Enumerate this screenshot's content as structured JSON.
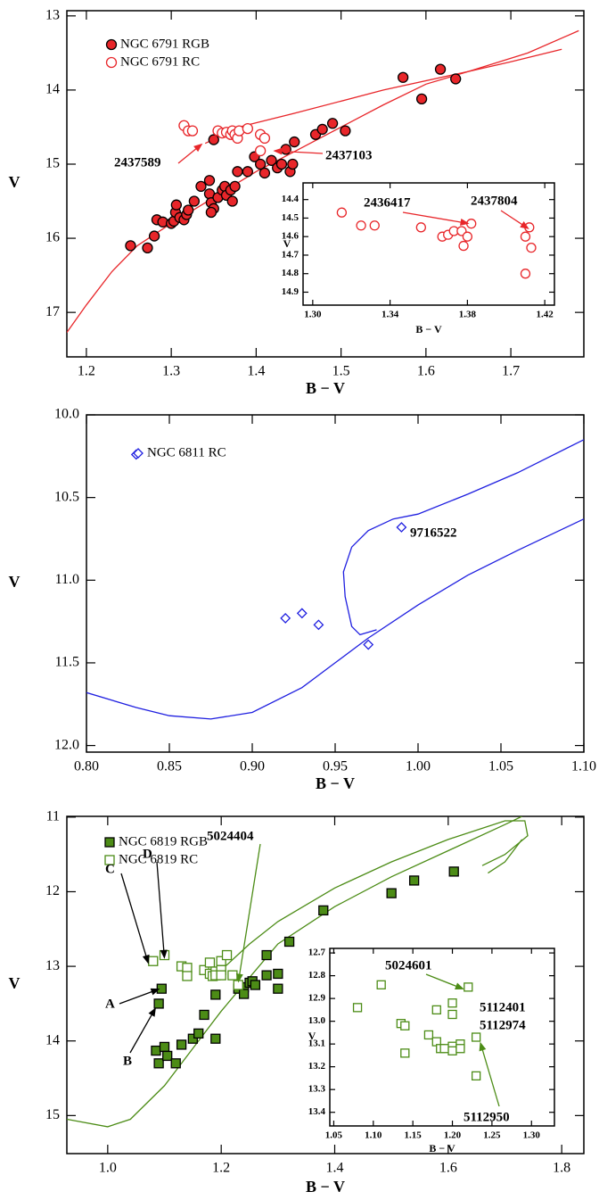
{
  "chart_data": [
    {
      "type": "scatter",
      "xlabel": "B − V",
      "ylabel": "V",
      "y_inverted": true,
      "color": "#e8262a",
      "xlim": [
        1.177,
        1.786
      ],
      "ylim": [
        12.93,
        17.6
      ],
      "xticks": [
        1.2,
        1.3,
        1.4,
        1.5,
        1.6,
        1.7
      ],
      "yticks": [
        13,
        14,
        15,
        16,
        17
      ],
      "series": [
        {
          "name": "NGC 6791 RGB",
          "color": "#e8262a",
          "marker": "filled-circle",
          "x": [
            1.252,
            1.272,
            1.28,
            1.283,
            1.29,
            1.3,
            1.303,
            1.305,
            1.306,
            1.31,
            1.315,
            1.318,
            1.32,
            1.327,
            1.335,
            1.345,
            1.345,
            1.347,
            1.35,
            1.347,
            1.35,
            1.355,
            1.36,
            1.363,
            1.365,
            1.37,
            1.372,
            1.375,
            1.378,
            1.39,
            1.398,
            1.405,
            1.41,
            1.418,
            1.425,
            1.43,
            1.435,
            1.44,
            1.443,
            1.445,
            1.47,
            1.478,
            1.49,
            1.505,
            1.573,
            1.595,
            1.617,
            1.635
          ],
          "y": [
            16.1,
            16.13,
            15.97,
            15.75,
            15.78,
            15.8,
            15.77,
            15.65,
            15.55,
            15.72,
            15.75,
            15.68,
            15.62,
            15.5,
            15.3,
            15.22,
            15.4,
            15.52,
            15.6,
            15.65,
            14.67,
            15.45,
            15.35,
            15.3,
            15.42,
            15.35,
            15.5,
            15.3,
            15.1,
            15.1,
            14.9,
            15.0,
            15.12,
            14.95,
            15.05,
            15.0,
            14.8,
            15.1,
            15.0,
            14.7,
            14.6,
            14.53,
            14.45,
            14.55,
            13.83,
            14.12,
            13.72,
            13.85
          ]
        },
        {
          "name": "NGC 6791 RC",
          "color": "#e8262a",
          "marker": "open-circle",
          "x": [
            1.315,
            1.32,
            1.325,
            1.355,
            1.36,
            1.365,
            1.37,
            1.372,
            1.375,
            1.378,
            1.38,
            1.39,
            1.405,
            1.41,
            1.405
          ],
          "y": [
            14.48,
            14.55,
            14.55,
            14.55,
            14.58,
            14.57,
            14.6,
            14.55,
            14.6,
            14.65,
            14.55,
            14.52,
            14.6,
            14.65,
            14.82
          ]
        }
      ],
      "model_lines": [
        {
          "x": [
            1.177,
            1.2,
            1.23,
            1.26,
            1.3,
            1.35,
            1.4,
            1.45,
            1.5,
            1.55,
            1.6,
            1.65,
            1.7,
            1.76
          ],
          "y": [
            17.27,
            16.9,
            16.45,
            16.1,
            15.8,
            15.45,
            15.1,
            14.8,
            14.5,
            14.2,
            13.92,
            13.75,
            13.62,
            13.45
          ]
        },
        {
          "x": [
            1.34,
            1.38,
            1.45,
            1.55,
            1.65,
            1.72,
            1.78
          ],
          "y": [
            14.72,
            14.5,
            14.3,
            14.0,
            13.75,
            13.5,
            13.2
          ]
        }
      ],
      "annotations": [
        {
          "text": "2437589",
          "color": "#e8262a",
          "target": [
            1.337,
            14.72
          ]
        },
        {
          "text": "2437103",
          "color": "#e8262a",
          "target": [
            1.42,
            14.82
          ]
        }
      ]
    },
    {
      "type": "scatter",
      "xlabel": "B − V",
      "ylabel": "V",
      "y_inverted": true,
      "color": "#e8262a",
      "xlim": [
        1.295,
        1.425
      ],
      "ylim": [
        14.31,
        14.97
      ],
      "xticks": [
        {
          "value": 1.3,
          "label": "1.30"
        },
        1.34,
        1.38,
        1.42
      ],
      "yticks": [
        14.4,
        14.5,
        14.6,
        14.7,
        14.8,
        14.9
      ],
      "series": [
        {
          "color": "#e8262a",
          "marker": "open-circle",
          "x": [
            1.315,
            1.325,
            1.332,
            1.356,
            1.367,
            1.37,
            1.373,
            1.377,
            1.378,
            1.38,
            1.382,
            1.41,
            1.41,
            1.412,
            1.413
          ],
          "y": [
            14.47,
            14.54,
            14.54,
            14.55,
            14.6,
            14.59,
            14.57,
            14.57,
            14.65,
            14.6,
            14.53,
            14.6,
            14.8,
            14.55,
            14.66
          ]
        }
      ],
      "annotations": [
        {
          "text": "2436417",
          "color": "#e8262a",
          "target": [
            1.381,
            14.53
          ]
        },
        {
          "text": "2437804",
          "color": "#e8262a",
          "target": [
            1.412,
            14.56
          ]
        }
      ]
    },
    {
      "type": "scatter",
      "xlabel": "B − V",
      "ylabel": "V",
      "y_inverted": true,
      "color": "#1f1fe0",
      "xlim": [
        0.8,
        1.1
      ],
      "ylim": [
        10.0,
        12.04
      ],
      "xticks": [
        {
          "value": 0.8,
          "label": "0.80"
        },
        0.85,
        {
          "value": 0.9,
          "label": "0.90"
        },
        0.95,
        {
          "value": 1.0,
          "label": "1.00"
        },
        1.05,
        {
          "value": 1.1,
          "label": "1.10"
        }
      ],
      "yticks": [
        {
          "value": 10.0,
          "label": "10.0"
        },
        10.5,
        {
          "value": 11.0,
          "label": "11.0"
        },
        11.5,
        {
          "value": 12.0,
          "label": "12.0"
        }
      ],
      "series": [
        {
          "name": "NGC 6811 RC",
          "color": "#1f1fe0",
          "marker": "open-diamond",
          "x": [
            0.83,
            0.92,
            0.93,
            0.94,
            0.97,
            0.99
          ],
          "y": [
            10.24,
            11.23,
            11.2,
            11.27,
            11.39,
            10.68
          ]
        }
      ],
      "model_lines": [
        {
          "x": [
            0.8,
            0.83,
            0.85,
            0.875,
            0.9,
            0.93,
            0.95,
            0.97,
            1.0,
            1.03,
            1.06,
            1.1
          ],
          "y": [
            11.68,
            11.77,
            11.82,
            11.84,
            11.8,
            11.65,
            11.5,
            11.35,
            11.15,
            10.97,
            10.82,
            10.63
          ]
        },
        {
          "x": [
            0.975,
            0.965,
            0.96,
            0.956,
            0.955,
            0.96,
            0.97,
            0.985,
            1.0,
            1.03,
            1.06,
            1.1
          ],
          "y": [
            11.3,
            11.33,
            11.28,
            11.1,
            10.95,
            10.8,
            10.7,
            10.63,
            10.6,
            10.48,
            10.35,
            10.15
          ]
        }
      ],
      "annotations": [
        {
          "text": "9716522",
          "color": "#1f1fe0"
        }
      ]
    },
    {
      "type": "scatter",
      "xlabel": "B − V",
      "ylabel": "V",
      "y_inverted": true,
      "color": "#4c8c16",
      "xlim": [
        0.928,
        1.839
      ],
      "ylim": [
        10.99,
        15.51
      ],
      "xticks": [
        {
          "value": 1.0,
          "label": "1.0"
        },
        1.2,
        1.4,
        1.6,
        1.8
      ],
      "yticks": [
        11,
        12,
        13,
        14,
        15
      ],
      "series": [
        {
          "name": "NGC 6819 RGB",
          "color": "#4c8c16",
          "marker": "filled-square",
          "x": [
            1.085,
            1.09,
            1.1,
            1.105,
            1.12,
            1.13,
            1.15,
            1.16,
            1.17,
            1.19,
            1.19,
            1.23,
            1.24,
            1.24,
            1.25,
            1.255,
            1.26,
            1.28,
            1.3,
            1.3,
            1.32,
            1.28,
            1.38,
            1.5,
            1.54,
            1.61,
            1.09,
            1.095
          ],
          "y": [
            14.13,
            14.3,
            14.08,
            14.2,
            14.3,
            14.05,
            13.97,
            13.9,
            13.65,
            13.97,
            13.38,
            13.3,
            13.28,
            13.37,
            13.22,
            13.2,
            13.25,
            13.12,
            13.1,
            13.3,
            12.67,
            12.85,
            12.25,
            12.02,
            11.85,
            11.73,
            13.5,
            13.3
          ]
        },
        {
          "name": "NGC 6819 RC",
          "color": "#4c8c16",
          "marker": "open-square",
          "x": [
            1.08,
            1.1,
            1.13,
            1.14,
            1.14,
            1.17,
            1.18,
            1.18,
            1.185,
            1.19,
            1.19,
            1.2,
            1.2,
            1.2,
            1.21,
            1.22,
            1.23
          ],
          "y": [
            12.93,
            12.85,
            13.0,
            13.02,
            13.13,
            13.05,
            12.95,
            13.1,
            13.13,
            13.07,
            13.12,
            12.93,
            13.05,
            13.12,
            12.85,
            13.12,
            13.25
          ]
        }
      ],
      "model_lines": [
        {
          "x": [
            0.928,
            1.0,
            1.04,
            1.1,
            1.15,
            1.2,
            1.25,
            1.3,
            1.4,
            1.5,
            1.6,
            1.7,
            1.73
          ],
          "y": [
            15.05,
            15.15,
            15.05,
            14.6,
            14.1,
            13.6,
            13.15,
            12.7,
            12.2,
            11.8,
            11.45,
            11.1,
            10.99
          ]
        },
        {
          "x": [
            1.2,
            1.25,
            1.3,
            1.4,
            1.5,
            1.6,
            1.7,
            1.735,
            1.74,
            1.7,
            1.66
          ],
          "y": [
            13.05,
            12.7,
            12.4,
            11.95,
            11.6,
            11.3,
            11.05,
            11.05,
            11.25,
            11.5,
            11.65
          ]
        },
        {
          "x": [
            1.73,
            1.7,
            1.67
          ],
          "y": [
            11.3,
            11.6,
            11.75
          ]
        }
      ],
      "annotations": [
        {
          "text": "5024404",
          "color": "#4c8c16",
          "target": [
            1.23,
            13.22
          ]
        },
        {
          "text": "D",
          "color": "#000000",
          "target": [
            1.1,
            12.9
          ]
        },
        {
          "text": "C",
          "color": "#000000",
          "target": [
            1.072,
            12.97
          ]
        },
        {
          "text": "A",
          "color": "#000000",
          "target": [
            1.092,
            13.3
          ]
        },
        {
          "text": "B",
          "color": "#000000",
          "target": [
            1.085,
            13.55
          ]
        }
      ]
    },
    {
      "type": "scatter",
      "xlabel": "B − V",
      "ylabel": "V",
      "y_inverted": true,
      "color": "#4c8c16",
      "xlim": [
        1.045,
        1.329
      ],
      "ylim": [
        12.68,
        13.46
      ],
      "xticks": [
        1.05,
        {
          "value": 1.1,
          "label": "1.10"
        },
        1.15,
        {
          "value": 1.2,
          "label": "1.20"
        },
        1.25,
        {
          "value": 1.3,
          "label": "1.30"
        }
      ],
      "yticks": [
        12.7,
        12.8,
        12.9,
        {
          "value": 13.0,
          "label": "13.0"
        },
        13.1,
        13.2,
        13.3,
        13.4
      ],
      "series": [
        {
          "color": "#4c8c16",
          "marker": "open-square",
          "x": [
            1.08,
            1.11,
            1.135,
            1.14,
            1.14,
            1.17,
            1.18,
            1.18,
            1.185,
            1.19,
            1.2,
            1.2,
            1.2,
            1.2,
            1.21,
            1.21,
            1.22,
            1.23,
            1.23
          ],
          "y": [
            12.94,
            12.84,
            13.01,
            13.02,
            13.14,
            13.06,
            12.95,
            13.09,
            13.12,
            13.12,
            13.11,
            13.13,
            12.92,
            12.97,
            13.1,
            13.12,
            12.85,
            13.07,
            13.24
          ]
        }
      ],
      "annotations": [
        {
          "text": "5024601",
          "color": "#4c8c16",
          "target": [
            1.215,
            12.86
          ]
        },
        {
          "text": "5112401",
          "color": "#4c8c16"
        },
        {
          "text": "5112974",
          "color": "#4c8c16"
        },
        {
          "text": "5112950",
          "color": "#4c8c16",
          "target": [
            1.235,
            13.09
          ]
        }
      ]
    }
  ]
}
